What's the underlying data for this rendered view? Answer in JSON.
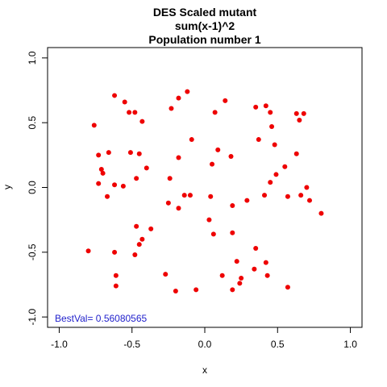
{
  "chart_data": {
    "type": "scatter",
    "title": [
      "DES Scaled mutant",
      "sum(x-1)^2",
      "Population number 1"
    ],
    "xlabel": "x",
    "ylabel": "y",
    "xlim": [
      -1.0,
      1.0
    ],
    "ylim": [
      -1.0,
      1.0
    ],
    "xticks": [
      -1.0,
      -0.5,
      0.0,
      0.5,
      1.0
    ],
    "yticks": [
      -1.0,
      -0.5,
      0.0,
      0.5,
      1.0
    ],
    "xtick_labels": [
      "-1.0",
      "-0.5",
      "0.0",
      "0.5",
      "1.0"
    ],
    "ytick_labels": [
      "-1.0",
      "-0.5",
      "0.0",
      "0.5",
      "1.0"
    ],
    "grid": false,
    "annotation": {
      "text": "BestVal= 0.56080565",
      "color": "#2222cc",
      "position": "bottom-left"
    },
    "point_color": "#ee0000",
    "points": [
      [
        -0.62,
        0.71
      ],
      [
        -0.55,
        0.66
      ],
      [
        -0.52,
        0.58
      ],
      [
        -0.48,
        0.58
      ],
      [
        -0.43,
        0.51
      ],
      [
        -0.76,
        0.48
      ],
      [
        -0.23,
        0.61
      ],
      [
        -0.18,
        0.69
      ],
      [
        -0.12,
        0.74
      ],
      [
        -0.09,
        0.37
      ],
      [
        -0.18,
        0.23
      ],
      [
        -0.4,
        0.15
      ],
      [
        0.07,
        0.58
      ],
      [
        0.14,
        0.67
      ],
      [
        0.09,
        0.29
      ],
      [
        0.18,
        0.24
      ],
      [
        0.05,
        0.18
      ],
      [
        -0.73,
        0.25
      ],
      [
        -0.66,
        0.27
      ],
      [
        -0.51,
        0.27
      ],
      [
        -0.45,
        0.26
      ],
      [
        -0.71,
        0.14
      ],
      [
        -0.7,
        0.11
      ],
      [
        -0.47,
        0.07
      ],
      [
        -0.62,
        0.02
      ],
      [
        -0.56,
        0.01
      ],
      [
        -0.73,
        0.03
      ],
      [
        -0.67,
        -0.07
      ],
      [
        -0.24,
        0.07
      ],
      [
        -0.14,
        -0.06
      ],
      [
        -0.1,
        -0.06
      ],
      [
        -0.25,
        -0.12
      ],
      [
        -0.18,
        -0.16
      ],
      [
        0.04,
        -0.07
      ],
      [
        0.19,
        -0.14
      ],
      [
        0.29,
        -0.1
      ],
      [
        0.03,
        -0.25
      ],
      [
        0.06,
        -0.36
      ],
      [
        0.19,
        -0.35
      ],
      [
        0.35,
        0.62
      ],
      [
        0.42,
        0.63
      ],
      [
        0.45,
        0.58
      ],
      [
        0.37,
        0.37
      ],
      [
        0.46,
        0.47
      ],
      [
        0.48,
        0.33
      ],
      [
        0.63,
        0.57
      ],
      [
        0.68,
        0.57
      ],
      [
        0.65,
        0.52
      ],
      [
        0.63,
        0.26
      ],
      [
        0.55,
        0.16
      ],
      [
        0.49,
        0.1
      ],
      [
        0.45,
        0.04
      ],
      [
        0.7,
        0.0
      ],
      [
        0.72,
        -0.1
      ],
      [
        0.66,
        -0.06
      ],
      [
        0.57,
        -0.07
      ],
      [
        0.8,
        -0.2
      ],
      [
        0.41,
        -0.06
      ],
      [
        -0.47,
        -0.3
      ],
      [
        -0.37,
        -0.32
      ],
      [
        -0.43,
        -0.4
      ],
      [
        -0.45,
        -0.44
      ],
      [
        -0.48,
        -0.52
      ],
      [
        -0.62,
        -0.5
      ],
      [
        -0.8,
        -0.49
      ],
      [
        -0.61,
        -0.68
      ],
      [
        -0.61,
        -0.76
      ],
      [
        -0.27,
        -0.67
      ],
      [
        -0.2,
        -0.8
      ],
      [
        -0.06,
        -0.79
      ],
      [
        0.12,
        -0.68
      ],
      [
        0.22,
        -0.57
      ],
      [
        0.25,
        -0.7
      ],
      [
        0.24,
        -0.74
      ],
      [
        0.19,
        -0.79
      ],
      [
        0.35,
        -0.47
      ],
      [
        0.34,
        -0.63
      ],
      [
        0.42,
        -0.58
      ],
      [
        0.43,
        -0.68
      ],
      [
        0.57,
        -0.77
      ]
    ]
  }
}
